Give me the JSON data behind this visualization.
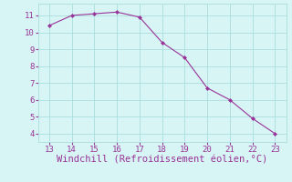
{
  "x": [
    13,
    14,
    15,
    16,
    17,
    18,
    19,
    20,
    21,
    22,
    23
  ],
  "y": [
    10.4,
    11.0,
    11.1,
    11.2,
    10.9,
    9.4,
    8.5,
    6.7,
    6.0,
    4.9,
    4.0
  ],
  "line_color": "#993399",
  "marker": "D",
  "marker_size": 2.0,
  "background_color": "#d8f5f5",
  "grid_color": "#aadddd",
  "xlabel": "Windchill (Refroidissement éolien,°C)",
  "xlim": [
    12.5,
    23.5
  ],
  "ylim": [
    3.5,
    11.7
  ],
  "xticks": [
    13,
    14,
    15,
    16,
    17,
    18,
    19,
    20,
    21,
    22,
    23
  ],
  "yticks": [
    4,
    5,
    6,
    7,
    8,
    9,
    10,
    11
  ],
  "tick_color": "#993399",
  "label_color": "#993399",
  "tick_fontsize": 6.5,
  "xlabel_fontsize": 7.5,
  "linewidth": 0.8
}
